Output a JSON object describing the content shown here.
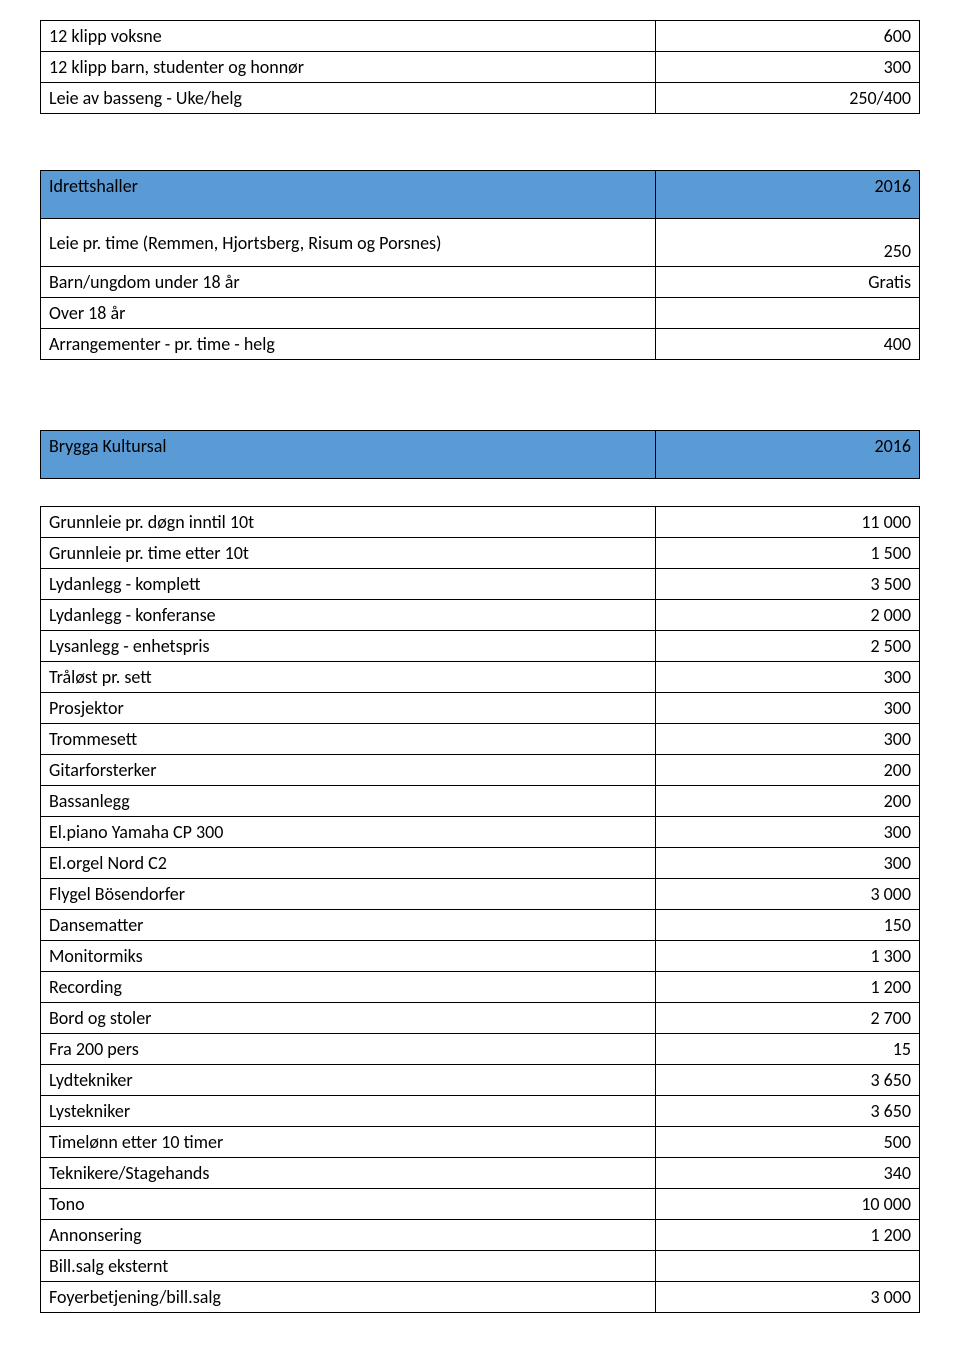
{
  "colors": {
    "header_bg": "#5b9bd5",
    "border": "#000000",
    "text": "#000000",
    "background": "#ffffff"
  },
  "table1": {
    "rows": [
      {
        "label": "12 klipp voksne",
        "value": "600"
      },
      {
        "label": "12 klipp barn, studenter og honnør",
        "value": "300"
      },
      {
        "label": "Leie av basseng - Uke/helg",
        "value": "250/400"
      }
    ]
  },
  "table2": {
    "header": {
      "label": "Idrettshaller",
      "value": "2016"
    },
    "rows": [
      {
        "label": "Leie pr. time (Remmen, Hjortsberg, Risum og Porsnes)",
        "value": "250",
        "multiline": true
      },
      {
        "label": "Barn/ungdom under 18 år",
        "value": "Gratis"
      },
      {
        "label": "Over 18 år",
        "value": ""
      },
      {
        "label": "Arrangementer - pr. time - helg",
        "value": "400"
      }
    ]
  },
  "table3": {
    "header": {
      "label": "Brygga Kultursal",
      "value": "2016"
    },
    "rows": [
      {
        "label": "Grunnleie pr. døgn  inntil 10t",
        "value": "11 000"
      },
      {
        "label": "Grunnleie pr. time etter 10t",
        "value": "1 500"
      },
      {
        "label": "Lydanlegg - komplett",
        "value": "3 500"
      },
      {
        "label": "Lydanlegg - konferanse",
        "value": "2 000"
      },
      {
        "label": "Lysanlegg - enhetspris",
        "value": "2 500"
      },
      {
        "label": "Tråløst pr. sett",
        "value": "300"
      },
      {
        "label": "Prosjektor",
        "value": "300"
      },
      {
        "label": "Trommesett",
        "value": "300"
      },
      {
        "label": "Gitarforsterker",
        "value": "200"
      },
      {
        "label": "Bassanlegg",
        "value": "200"
      },
      {
        "label": "El.piano Yamaha CP 300",
        "value": "300"
      },
      {
        "label": "El.orgel Nord C2",
        "value": "300"
      },
      {
        "label": "Flygel Bösendorfer",
        "value": "3 000"
      },
      {
        "label": "Dansematter",
        "value": "150"
      },
      {
        "label": "Monitormiks",
        "value": "1 300"
      },
      {
        "label": "Recording",
        "value": "1 200"
      },
      {
        "label": "Bord og stoler",
        "value": "2 700"
      },
      {
        "label": "Fra 200 pers",
        "value": "15"
      },
      {
        "label": "Lydtekniker",
        "value": "3 650"
      },
      {
        "label": "Lystekniker",
        "value": "3 650"
      },
      {
        "label": "Timelønn etter 10 timer",
        "value": "500"
      },
      {
        "label": "Teknikere/Stagehands",
        "value": "340"
      },
      {
        "label": "Tono",
        "value": "10 000"
      },
      {
        "label": "Annonsering",
        "value": "1 200"
      },
      {
        "label": "Bill.salg eksternt",
        "value": ""
      },
      {
        "label": "Foyerbetjening/bill.salg",
        "value": "3 000"
      }
    ]
  }
}
